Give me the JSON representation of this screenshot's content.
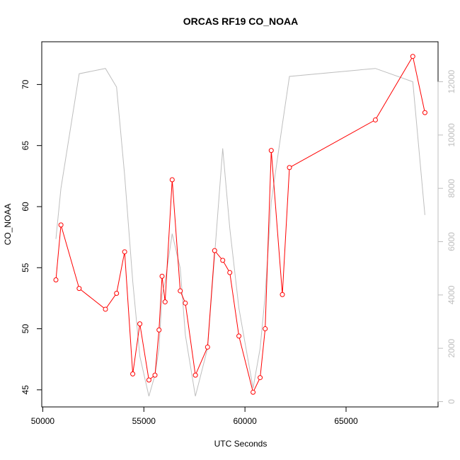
{
  "chart_data": {
    "type": "line",
    "title": "ORCAS RF19 CO_NOAA",
    "xlabel": "UTC Seconds",
    "ylabel": "CO_NOAA",
    "xlim": [
      49950,
      69550
    ],
    "ylim": [
      43.6,
      73.5
    ],
    "y2lim": [
      -200,
      13500
    ],
    "x_ticks": [
      50000,
      55000,
      60000,
      65000
    ],
    "y_ticks": [
      45,
      50,
      55,
      60,
      65,
      70
    ],
    "y2_ticks": [
      0,
      2000,
      4000,
      6000,
      8000,
      10000,
      12000
    ],
    "grid": false,
    "series": [
      {
        "color": "#ff0000",
        "axis": "left",
        "markers": "open-circle",
        "x": [
          50650,
          50900,
          51800,
          53100,
          53650,
          54050,
          54450,
          54800,
          55250,
          55550,
          55750,
          55900,
          56050,
          56400,
          56800,
          57050,
          57550,
          58150,
          58500,
          58900,
          59250,
          59700,
          60400,
          60750,
          61000,
          61300,
          61850,
          62200,
          66450,
          68300,
          68900
        ],
        "y": [
          54.0,
          58.5,
          53.3,
          51.6,
          52.9,
          56.3,
          46.3,
          50.4,
          45.8,
          46.2,
          49.9,
          54.3,
          52.2,
          62.2,
          53.1,
          52.1,
          46.2,
          48.5,
          56.4,
          55.6,
          54.6,
          49.4,
          44.8,
          46.0,
          50.0,
          64.6,
          52.8,
          63.2,
          67.1,
          72.3,
          67.7
        ]
      },
      {
        "color": "#bebebe",
        "axis": "right",
        "markers": "none",
        "x": [
          50650,
          50900,
          51800,
          53100,
          53650,
          54050,
          54450,
          54800,
          55250,
          55550,
          55750,
          55900,
          56050,
          56400,
          56800,
          57050,
          57550,
          58150,
          58500,
          58900,
          59250,
          59700,
          60400,
          60750,
          61000,
          61300,
          61850,
          62200,
          66450,
          68300,
          68900
        ],
        "y": [
          6100,
          8000,
          12300,
          12500,
          11800,
          8500,
          4500,
          1700,
          200,
          1000,
          2000,
          4000,
          4500,
          6300,
          5000,
          2500,
          200,
          2000,
          5500,
          9500,
          6500,
          3500,
          500,
          2000,
          4000,
          7500,
          10400,
          12200,
          12500,
          12000,
          7000
        ]
      }
    ]
  }
}
